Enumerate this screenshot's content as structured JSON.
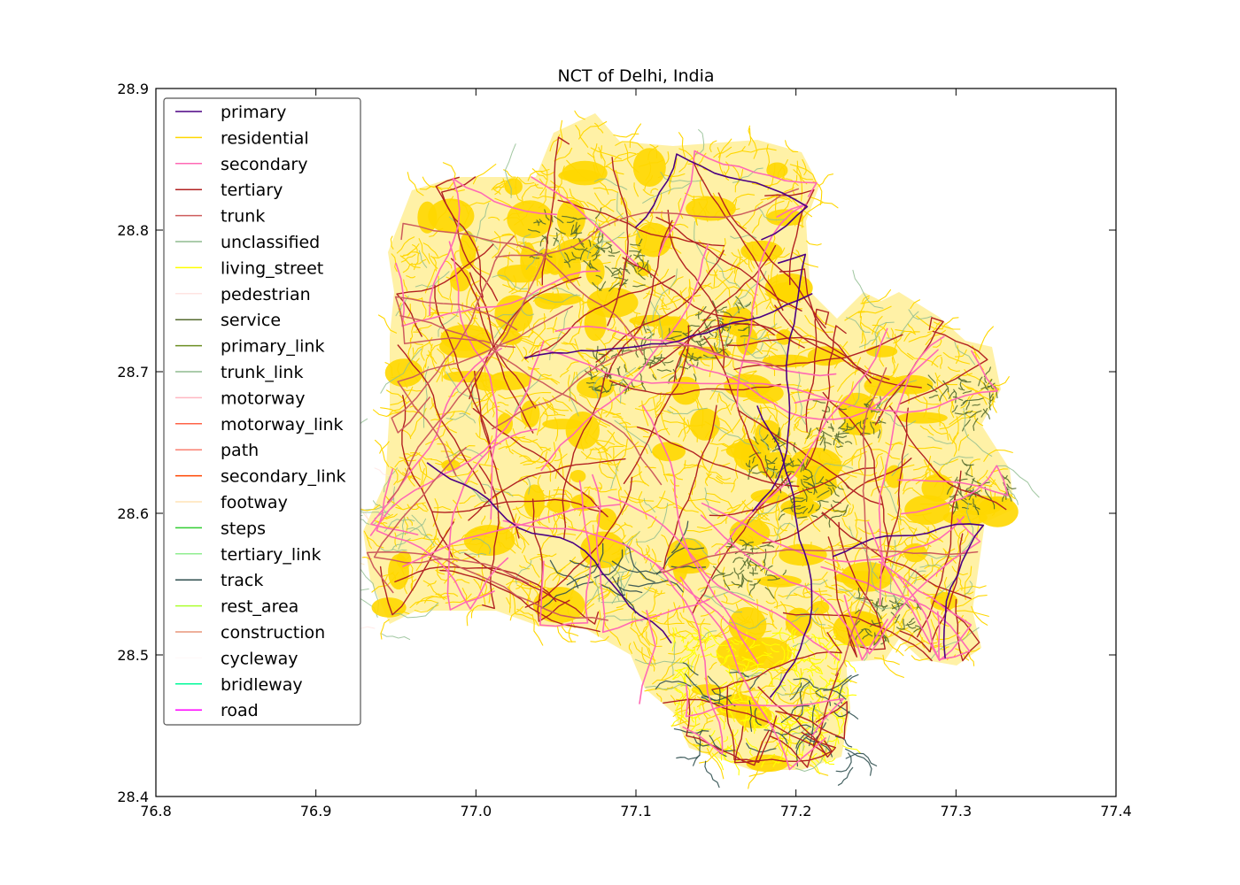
{
  "chart_data": {
    "type": "map",
    "title": "NCT of Delhi, India",
    "xlabel": "",
    "ylabel": "",
    "xlim": [
      76.8,
      77.4
    ],
    "ylim": [
      28.4,
      28.9
    ],
    "x_ticks": [
      "76.8",
      "76.9",
      "77.0",
      "77.1",
      "77.2",
      "77.3",
      "77.4"
    ],
    "y_ticks": [
      "28.4",
      "28.5",
      "28.6",
      "28.7",
      "28.8",
      "28.9"
    ],
    "grid": false,
    "legend_position": "upper-left",
    "legend": [
      {
        "label": "primary",
        "color": "#4b0082"
      },
      {
        "label": "residential",
        "color": "#ffd700"
      },
      {
        "label": "secondary",
        "color": "#ff69b4"
      },
      {
        "label": "tertiary",
        "color": "#b22222"
      },
      {
        "label": "trunk",
        "color": "#cd5c5c"
      },
      {
        "label": "unclassified",
        "color": "#8fbc8f"
      },
      {
        "label": "living_street",
        "color": "#ffff00"
      },
      {
        "label": "pedestrian",
        "color": "#ffe4e1"
      },
      {
        "label": "service",
        "color": "#556b2f"
      },
      {
        "label": "primary_link",
        "color": "#6b8e23"
      },
      {
        "label": "trunk_link",
        "color": "#8fbc8f"
      },
      {
        "label": "motorway",
        "color": "#ffb6c1"
      },
      {
        "label": "motorway_link",
        "color": "#ff6347"
      },
      {
        "label": "path",
        "color": "#fa8072"
      },
      {
        "label": "secondary_link",
        "color": "#ff4500"
      },
      {
        "label": "footway",
        "color": "#ffe4b5"
      },
      {
        "label": "steps",
        "color": "#32cd32"
      },
      {
        "label": "tertiary_link",
        "color": "#90ee90"
      },
      {
        "label": "track",
        "color": "#2f4f4f"
      },
      {
        "label": "rest_area",
        "color": "#adff2f"
      },
      {
        "label": "construction",
        "color": "#e9967a"
      },
      {
        "label": "cycleway",
        "color": "#fffafa"
      },
      {
        "label": "bridleway",
        "color": "#00fa9a"
      },
      {
        "label": "road",
        "color": "#ff00ff"
      }
    ]
  }
}
